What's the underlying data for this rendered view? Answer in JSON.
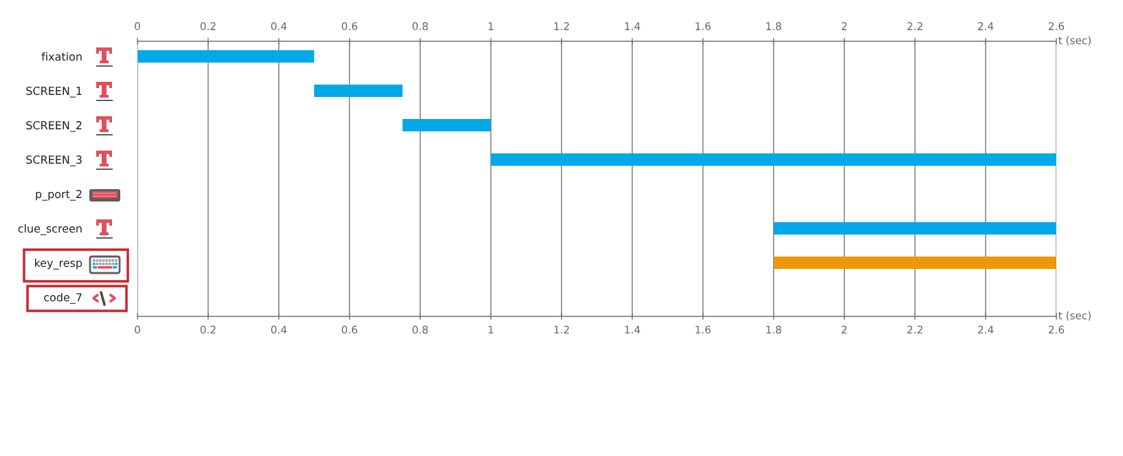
{
  "chart_data": {
    "type": "bar",
    "orientation": "horizontal",
    "categories": [
      "fixation",
      "SCREEN_1",
      "SCREEN_2",
      "SCREEN_3",
      "p_port_2",
      "clue_screen",
      "key_resp",
      "code_7"
    ],
    "base": [
      0,
      0.5,
      0.75,
      1,
      null,
      1.8,
      1.8,
      null
    ],
    "values": [
      0.5,
      0.25,
      0.25,
      1.6,
      null,
      0.8,
      0.8,
      null
    ],
    "colors": [
      "#02a8e8",
      "#02a8e8",
      "#02a8e8",
      "#02a8e8",
      null,
      "#02a8e8",
      "#ee9708",
      null
    ],
    "xlim": [
      0,
      2.6
    ],
    "xticks": [
      0,
      0.2,
      0.4,
      0.6,
      0.8,
      1,
      1.2,
      1.4,
      1.6,
      1.8,
      2,
      2.2,
      2.4,
      2.6
    ],
    "x2lim": [
      0,
      2.6
    ],
    "x2ticks": [
      0,
      0.2,
      0.4,
      0.6,
      0.8,
      1,
      1.2,
      1.4,
      1.6,
      1.8,
      2,
      2.2,
      2.4,
      2.6
    ],
    "xlabel": "t (sec)",
    "x2label": "t (sec)",
    "grid": "x"
  }
}
